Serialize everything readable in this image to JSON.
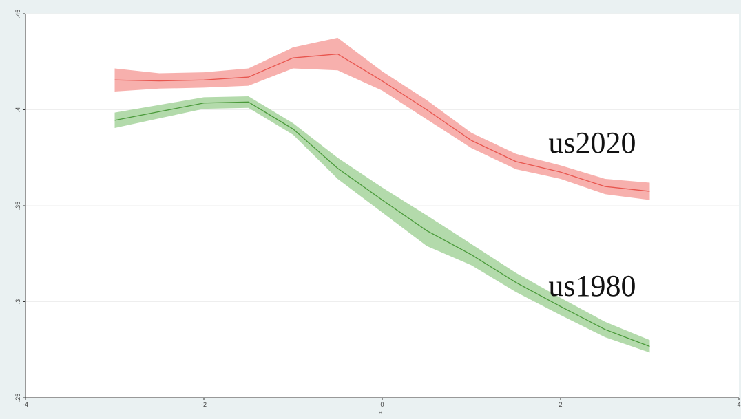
{
  "chart_data": {
    "type": "line",
    "x": [
      -3,
      -2.5,
      -2,
      -1.5,
      -1,
      -0.5,
      0,
      0.5,
      1,
      1.5,
      2,
      2.5,
      3
    ],
    "xlabel": "x",
    "series": [
      {
        "name": "us2020",
        "color": "#e8554e",
        "band_color": "#f6a29f",
        "values": [
          0.4155,
          0.415,
          0.4155,
          0.417,
          0.427,
          0.429,
          0.415,
          0.4,
          0.384,
          0.373,
          0.3675,
          0.36,
          0.3575
        ],
        "lower": [
          0.4095,
          0.411,
          0.4115,
          0.4125,
          0.4215,
          0.4205,
          0.41,
          0.395,
          0.38,
          0.369,
          0.364,
          0.356,
          0.353
        ],
        "upper": [
          0.4215,
          0.419,
          0.4195,
          0.4215,
          0.4325,
          0.4375,
          0.42,
          0.405,
          0.388,
          0.377,
          0.371,
          0.364,
          0.362
        ]
      },
      {
        "name": "us1980",
        "color": "#4a9a3a",
        "band_color": "#a6d49c",
        "values": [
          0.3945,
          0.399,
          0.4035,
          0.404,
          0.39,
          0.3695,
          0.353,
          0.337,
          0.3245,
          0.31,
          0.2975,
          0.2855,
          0.2767
        ],
        "lower": [
          0.3905,
          0.3955,
          0.4005,
          0.401,
          0.387,
          0.364,
          0.3465,
          0.329,
          0.319,
          0.305,
          0.293,
          0.2815,
          0.2735
        ],
        "upper": [
          0.3985,
          0.4025,
          0.4065,
          0.407,
          0.393,
          0.375,
          0.3595,
          0.345,
          0.33,
          0.315,
          0.302,
          0.2895,
          0.28
        ]
      }
    ],
    "xlim": [
      -4,
      4
    ],
    "xticks": [
      -4,
      -2,
      0,
      2,
      4
    ],
    "ylim": [
      0.25,
      0.45
    ],
    "yticks": [
      {
        "value": 0.25,
        "label": ".25"
      },
      {
        "value": 0.3,
        "label": ".3"
      },
      {
        "value": 0.35,
        "label": ".35"
      },
      {
        "value": 0.4,
        "label": ".4"
      },
      {
        "value": 0.45,
        "label": ".45"
      }
    ],
    "grid": true
  }
}
